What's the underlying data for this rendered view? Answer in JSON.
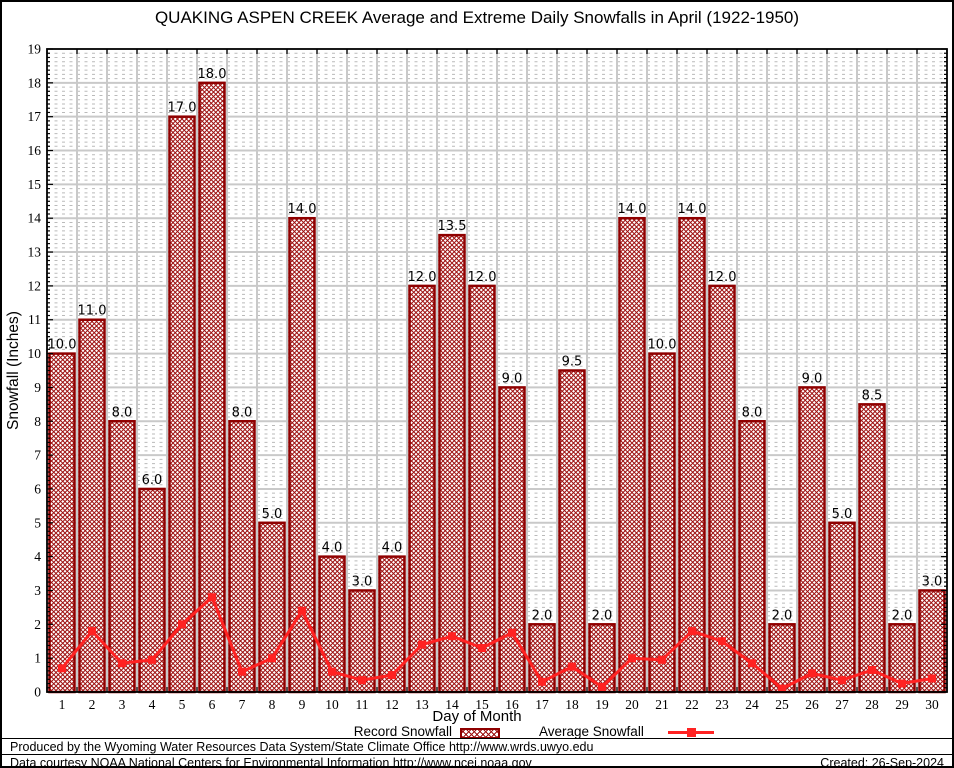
{
  "title": "QUAKING ASPEN CREEK Average and Extreme Daily Snowfalls in April (1922-1950)",
  "chart_data": {
    "type": "bar",
    "title": "QUAKING ASPEN CREEK Average and Extreme Daily Snowfalls in April (1922-1950)",
    "xlabel": "Day of Month",
    "ylabel": "Snowfall (Inches)",
    "ylim": [
      0,
      19
    ],
    "yticks": [
      0,
      1,
      2,
      3,
      4,
      5,
      6,
      7,
      8,
      9,
      10,
      11,
      12,
      13,
      14,
      15,
      16,
      17,
      18,
      19
    ],
    "categories": [
      1,
      2,
      3,
      4,
      5,
      6,
      7,
      8,
      9,
      10,
      11,
      12,
      13,
      14,
      15,
      16,
      17,
      18,
      19,
      20,
      21,
      22,
      23,
      24,
      25,
      26,
      27,
      28,
      29,
      30
    ],
    "grid": true,
    "legend_position": "bottom",
    "series": [
      {
        "name": "Record Snowfall",
        "type": "bar",
        "values": [
          10.0,
          11.0,
          8.0,
          6.0,
          17.0,
          18.0,
          8.0,
          5.0,
          14.0,
          4.0,
          3.0,
          4.0,
          12.0,
          13.5,
          12.0,
          9.0,
          2.0,
          9.5,
          2.0,
          14.0,
          10.0,
          14.0,
          12.0,
          8.0,
          2.0,
          9.0,
          5.0,
          8.5,
          2.0,
          3.0
        ],
        "bar_labels": [
          "10.0",
          "11.0",
          "8.0",
          "6.0",
          "17.0",
          "18.0",
          "8.0",
          "5.0",
          "14.0",
          "4.0",
          "3.0",
          "4.0",
          "12.0",
          "13.5",
          "12.0",
          "9.0",
          "2.0",
          "9.5",
          "2.0",
          "14.0",
          "10.0",
          "14.0",
          "12.0",
          "8.0",
          "2.0",
          "9.0",
          "5.0",
          "8.5",
          "2.0",
          "3.0"
        ]
      },
      {
        "name": "Average Snowfall",
        "type": "line",
        "values": [
          0.7,
          1.8,
          0.85,
          0.95,
          2.0,
          2.8,
          0.6,
          1.0,
          2.4,
          0.6,
          0.35,
          0.5,
          1.4,
          1.65,
          1.3,
          1.75,
          0.3,
          0.75,
          0.15,
          1.0,
          0.95,
          1.8,
          1.5,
          0.85,
          0.1,
          0.55,
          0.35,
          0.65,
          0.25,
          0.4
        ]
      }
    ]
  },
  "legend": {
    "record_label": "Record Snowfall",
    "average_label": "Average Snowfall"
  },
  "footer": {
    "line1": "Produced by the Wyoming Water Resources Data System/State Climate Office http://www.wrds.uwyo.edu",
    "line2": "Data courtesy NOAA National Centers for Environmental Information http://www.ncei.noaa.gov",
    "created": "Created: 26-Sep-2024"
  },
  "colors": {
    "bar_border": "#8f0000",
    "bar_hatch": "#9e1010",
    "line": "#ff2222",
    "grid_major": "#c9c9c9",
    "grid_minor": "#bababa",
    "axis": "#000000",
    "background": "#ffffff"
  }
}
